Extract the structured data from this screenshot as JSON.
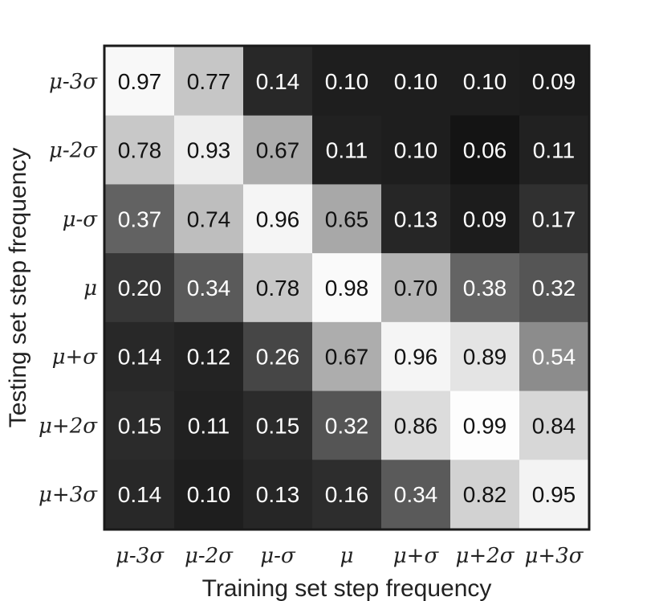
{
  "chart_data": {
    "type": "heatmap",
    "title": "",
    "xlabel": "Training set step frequency",
    "ylabel": "Testing set step frequency",
    "x_categories": [
      "μ-3σ",
      "μ-2σ",
      "μ-σ",
      "μ",
      "μ+σ",
      "μ+2σ",
      "μ+3σ"
    ],
    "y_categories": [
      "μ-3σ",
      "μ-2σ",
      "μ-σ",
      "μ",
      "μ+σ",
      "μ+2σ",
      "μ+3σ"
    ],
    "values": [
      [
        0.97,
        0.77,
        0.14,
        0.1,
        0.1,
        0.1,
        0.09
      ],
      [
        0.78,
        0.93,
        0.67,
        0.11,
        0.1,
        0.06,
        0.11
      ],
      [
        0.37,
        0.74,
        0.96,
        0.65,
        0.13,
        0.09,
        0.17
      ],
      [
        0.2,
        0.34,
        0.78,
        0.98,
        0.7,
        0.38,
        0.32
      ],
      [
        0.14,
        0.12,
        0.26,
        0.67,
        0.96,
        0.89,
        0.54
      ],
      [
        0.15,
        0.11,
        0.15,
        0.32,
        0.86,
        0.99,
        0.84
      ],
      [
        0.14,
        0.1,
        0.13,
        0.16,
        0.34,
        0.82,
        0.95
      ]
    ],
    "colormap": "grayscale",
    "value_range": [
      0,
      1
    ],
    "grid": false,
    "legend": "none"
  }
}
